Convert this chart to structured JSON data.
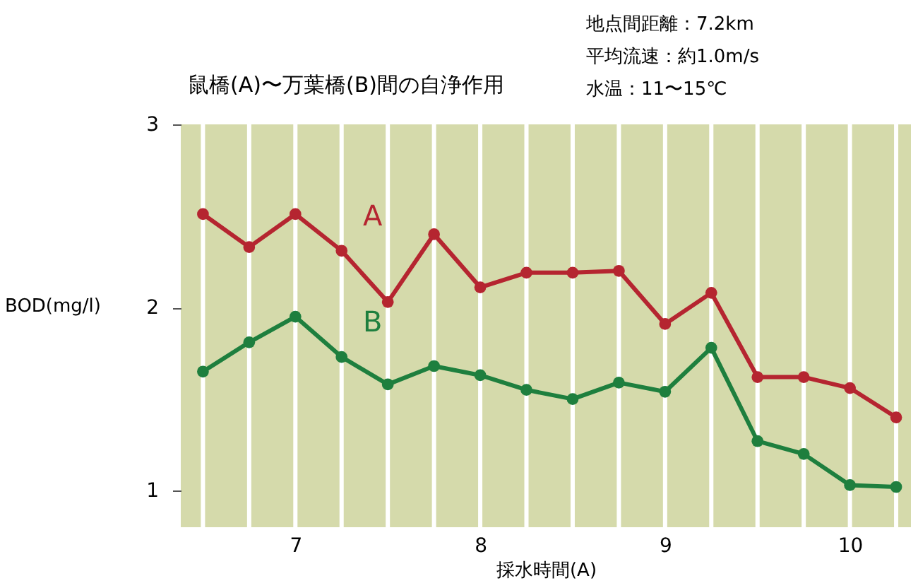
{
  "chart_data": {
    "type": "line",
    "title": "鼠橋(A)〜万葉橋(B)間の自浄作用",
    "xlabel": "採水時間(A)",
    "ylabel": "BOD(mg/l)",
    "annotations": [
      "地点間距離：7.2km",
      "平均流速：約1.0m/s",
      "水温：11〜15℃"
    ],
    "x": [
      6.5,
      6.75,
      7,
      7.25,
      7.5,
      7.75,
      8,
      8.25,
      8.5,
      8.75,
      9,
      9.25,
      9.5,
      9.75,
      10,
      10.25
    ],
    "series": [
      {
        "name": "A",
        "color": "#b52530",
        "values": [
          2.51,
          2.33,
          2.51,
          2.31,
          2.03,
          2.4,
          2.11,
          2.19,
          2.19,
          2.2,
          1.91,
          2.08,
          1.62,
          1.62,
          1.56,
          1.4
        ]
      },
      {
        "name": "B",
        "color": "#1e7f3e",
        "values": [
          1.65,
          1.81,
          1.95,
          1.73,
          1.58,
          1.68,
          1.63,
          1.55,
          1.5,
          1.59,
          1.54,
          1.78,
          1.27,
          1.2,
          1.03,
          1.02
        ]
      }
    ],
    "xlim": [
      6.38,
      10.33
    ],
    "ylim": [
      0.8,
      3
    ],
    "xticks": [
      {
        "value": 6.5,
        "label": null
      },
      {
        "value": 6.75,
        "label": null
      },
      7,
      {
        "value": 7.25,
        "label": null
      },
      {
        "value": 7.5,
        "label": null
      },
      {
        "value": 7.75,
        "label": null
      },
      8,
      {
        "value": 8.25,
        "label": null
      },
      {
        "value": 8.5,
        "label": null
      },
      {
        "value": 8.75,
        "label": null
      },
      9,
      {
        "value": 9.25,
        "label": null
      },
      {
        "value": 9.5,
        "label": null
      },
      {
        "value": 9.75,
        "label": null
      },
      10,
      {
        "value": 10.25,
        "label": null
      }
    ],
    "yticks": [
      1,
      2,
      3
    ],
    "grid": "x",
    "marker": "circle",
    "line_style": "solid"
  }
}
